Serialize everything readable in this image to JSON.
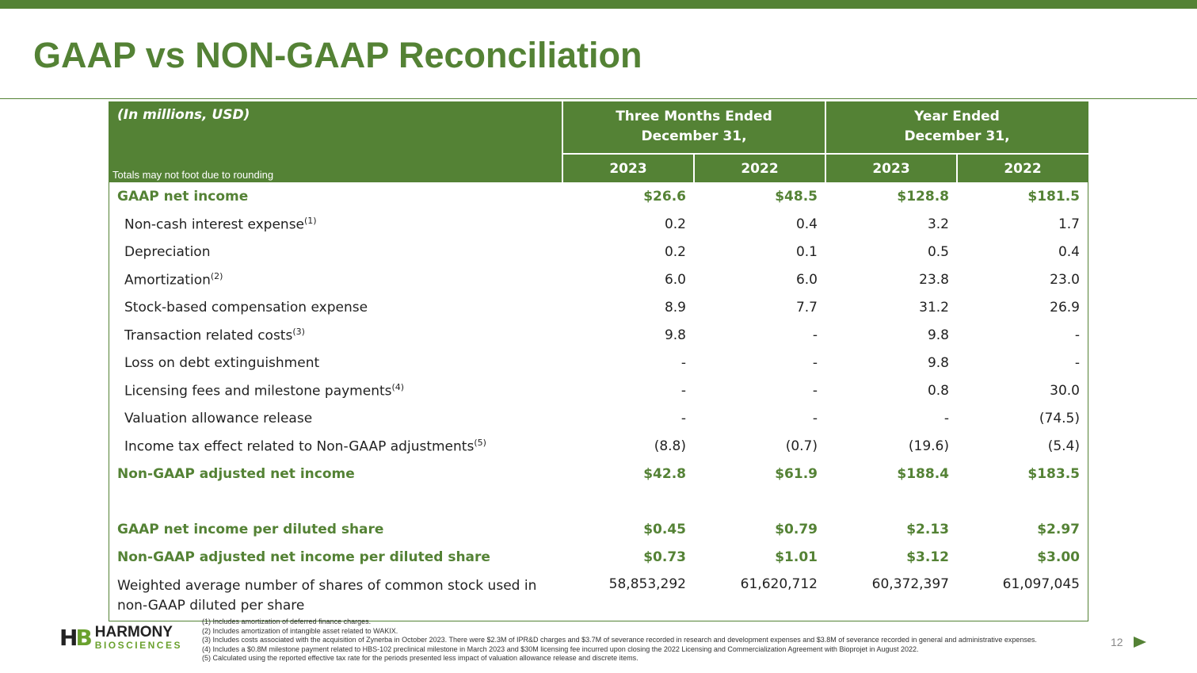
{
  "title": "GAAP vs NON-GAAP Reconciliation",
  "table": {
    "units": "(In millions, USD)",
    "note": "Totals may not foot due to rounding",
    "groups": [
      [
        "Three Months Ended",
        "December 31,"
      ],
      [
        "Year Ended",
        "December 31,"
      ]
    ],
    "years": [
      "2023",
      "2022",
      "2023",
      "2022"
    ],
    "rows": [
      {
        "label": "GAAP net income",
        "sup": "",
        "values": [
          "$26.6",
          "$48.5",
          "$128.8",
          "$181.5"
        ],
        "bold": true
      },
      {
        "label": "Non-cash interest expense",
        "sup": "(1)",
        "values": [
          "0.2",
          "0.4",
          "3.2",
          "1.7"
        ]
      },
      {
        "label": "Depreciation",
        "sup": "",
        "values": [
          "0.2",
          "0.1",
          "0.5",
          "0.4"
        ]
      },
      {
        "label": "Amortization",
        "sup": "(2)",
        "values": [
          "6.0",
          "6.0",
          "23.8",
          "23.0"
        ]
      },
      {
        "label": "Stock-based compensation expense",
        "sup": "",
        "values": [
          "8.9",
          "7.7",
          "31.2",
          "26.9"
        ]
      },
      {
        "label": "Transaction related costs",
        "sup": "(3)",
        "values": [
          "9.8",
          "-",
          "9.8",
          "-"
        ]
      },
      {
        "label": "Loss on debt extinguishment",
        "sup": "",
        "values": [
          "-",
          "-",
          "9.8",
          "-"
        ]
      },
      {
        "label": "Licensing fees and milestone payments",
        "sup": "(4)",
        "values": [
          "-",
          "-",
          "0.8",
          "30.0"
        ]
      },
      {
        "label": "Valuation allowance release",
        "sup": "",
        "values": [
          "-",
          "-",
          "-",
          "(74.5)"
        ]
      },
      {
        "label": "Income tax effect related to Non-GAAP adjustments",
        "sup": "(5)",
        "values": [
          "(8.8)",
          "(0.7)",
          "(19.6)",
          "(5.4)"
        ]
      },
      {
        "label": "Non-GAAP adjusted net income",
        "sup": "",
        "values": [
          "$42.8",
          "$61.9",
          "$188.4",
          "$183.5"
        ],
        "bold": true
      },
      {
        "label": "",
        "sup": "",
        "values": [
          "",
          "",
          "",
          ""
        ]
      },
      {
        "label": "GAAP net income per diluted share",
        "sup": "",
        "values": [
          "$0.45",
          "$0.79",
          "$2.13",
          "$2.97"
        ],
        "bold": true
      },
      {
        "label": "Non-GAAP adjusted net income per diluted share",
        "sup": "",
        "values": [
          "$0.73",
          "$1.01",
          "$3.12",
          "$3.00"
        ],
        "bold": true
      }
    ],
    "weighted": {
      "label1": "Weighted average number of shares of common stock used in",
      "label2": "non-GAAP diluted per share",
      "values": [
        "58,853,292",
        "61,620,712",
        "60,372,397",
        "61,097,045"
      ]
    }
  },
  "footnotes": [
    "(1) Includes amortization of deferred finance charges.",
    "(2) Includes amortization of intangible asset related to WAKIX.",
    "(3) Includes costs associated with the acquisition of Zynerba in October 2023. There were $2.3M of IPR&D charges and $3.7M of severance recorded in research and development expenses and $3.8M of severance recorded in general and administrative expenses.",
    "(4) Includes a $0.8M milestone payment related to HBS-102 preclinical milestone in March 2023 and $30M licensing fee incurred upon closing the 2022 Licensing and Commercialization Agreement with Bioprojet in August 2022.",
    "(5) Calculated using the reported effective tax rate for the periods presented less impact of valuation allowance release and discrete items."
  ],
  "logo": {
    "mark": "HB",
    "name": "HARMONY",
    "sub": "BIOSCIENCES"
  },
  "page_number": "12",
  "colors": {
    "accent": "#548235"
  }
}
